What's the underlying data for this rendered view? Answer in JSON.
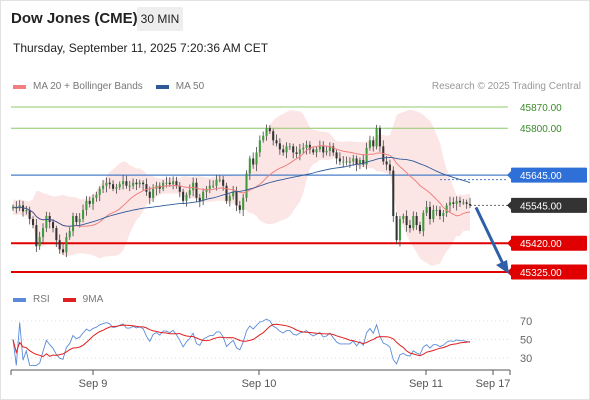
{
  "header": {
    "instrument": "Dow Jones (CME)",
    "interval": "30 MIN",
    "timestamp": "Thursday, September 11, 2025 7:20:36 AM CET",
    "credit": "Research © 2025 Trading Central"
  },
  "legend": {
    "items": [
      {
        "label": "MA 20 + Bollinger Bands",
        "color": "#f08080"
      },
      {
        "label": "MA 50",
        "color": "#2d5b9a"
      }
    ]
  },
  "rsi_legend": {
    "items": [
      {
        "label": "RSI",
        "color": "#5b8bd8"
      },
      {
        "label": "9MA",
        "color": "#e02020"
      }
    ]
  },
  "colors": {
    "resistance": "#8cc96a",
    "support": "#e00000",
    "pivot": "#4a7fc8",
    "last": "#333333",
    "bull": "#3f9a3f",
    "bear": "#333333",
    "band": "#fbdcdc"
  },
  "chart_data": {
    "type": "candlestick",
    "x_ticks": [
      "Sep 9",
      "Sep 10",
      "Sep 11",
      "Sep 17"
    ],
    "ylim": [
      45280,
      45910
    ],
    "levels": [
      {
        "value": 45870,
        "label": "45870.00",
        "kind": "resistance"
      },
      {
        "value": 45800,
        "label": "45800.00",
        "kind": "resistance"
      },
      {
        "value": 45645,
        "label": "45645.00",
        "kind": "pivot"
      },
      {
        "value": 45545,
        "label": "45545.00",
        "kind": "last"
      },
      {
        "value": 45420,
        "label": "45420.00",
        "kind": "support"
      },
      {
        "value": 45325,
        "label": "45325.00",
        "kind": "support"
      }
    ],
    "close": [
      45540,
      45535,
      45545,
      45525,
      45530,
      45500,
      45480,
      45410,
      45440,
      45470,
      45510,
      45490,
      45470,
      45430,
      45400,
      45390,
      45440,
      45460,
      45510,
      45490,
      45500,
      45530,
      45560,
      45550,
      45570,
      45580,
      45600,
      45610,
      45620,
      45615,
      45600,
      45605,
      45615,
      45625,
      45610,
      45610,
      45620,
      45615,
      45620,
      45615,
      45590,
      45570,
      45600,
      45610,
      45600,
      45620,
      45620,
      45615,
      45625,
      45610,
      45590,
      45560,
      45580,
      45595,
      45620,
      45570,
      45560,
      45590,
      45600,
      45610,
      45610,
      45630,
      45630,
      45610,
      45560,
      45575,
      45590,
      45545,
      45530,
      45570,
      45650,
      45700,
      45680,
      45720,
      45760,
      45775,
      45800,
      45790,
      45760,
      45750,
      45730,
      45720,
      45740,
      45740,
      45720,
      45715,
      45730,
      45735,
      45745,
      45730,
      45720,
      45730,
      45740,
      45720,
      45725,
      45740,
      45720,
      45700,
      45690,
      45690,
      45690,
      45690,
      45700,
      45680,
      45695,
      45680,
      45735,
      45760,
      45740,
      45800,
      45740,
      45690,
      45680,
      45660,
      45510,
      45430,
      45500,
      45510,
      45480,
      45470,
      45510,
      45480,
      45460,
      45520,
      45540,
      45500,
      45530,
      45530,
      45510,
      45520,
      45545,
      45555,
      45550,
      45560,
      45555,
      45555,
      45550,
      45545
    ],
    "rsi": {
      "ylim": [
        20,
        80
      ],
      "ticks": [
        70,
        50,
        30
      ]
    }
  }
}
